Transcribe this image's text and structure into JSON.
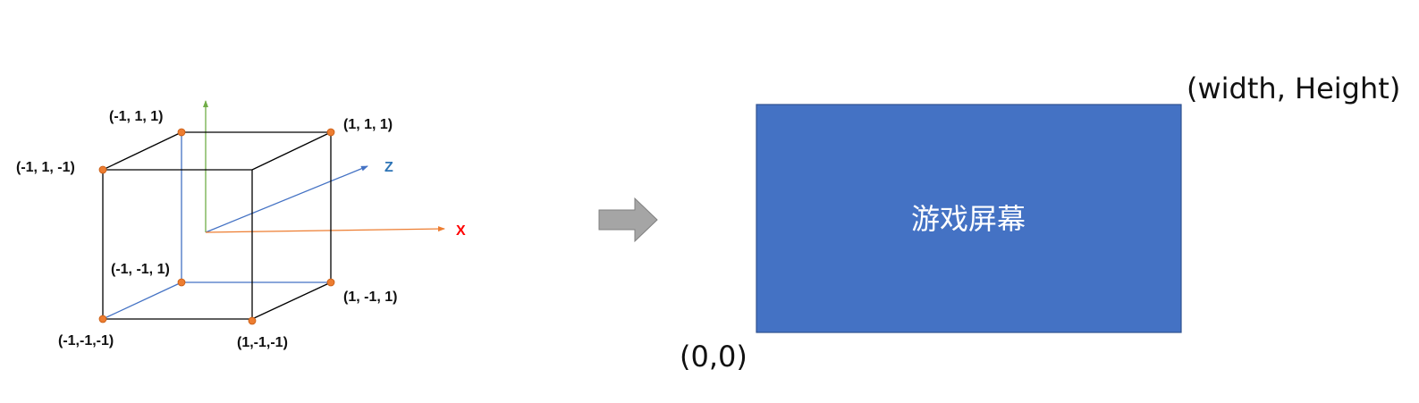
{
  "cube": {
    "vertices": {
      "top_back_left": "(-1, 1, 1)",
      "top_back_right": "(1, 1, 1)",
      "top_front_left": "(-1, 1, -1)",
      "bottom_back_left": "(-1, -1, 1)",
      "bottom_back_right": "(1, -1, 1)",
      "bottom_front_left": "(-1,-1,-1)",
      "bottom_front_right": "(1,-1,-1)"
    },
    "axes": {
      "z_label": "Z",
      "x_label": "X"
    },
    "colors": {
      "edge": "#000000",
      "hidden_edge": "#4472c4",
      "vertex": "#ed7d31",
      "y_axis": "#70ad47",
      "z_axis": "#4472c4",
      "x_axis": "#ed7d31",
      "z_label": "#2e75b6",
      "x_label": "#ff0000"
    }
  },
  "arrow": {
    "color": "#a5a5a5",
    "stroke": "#7f7f7f"
  },
  "screen": {
    "label": "游戏屏幕",
    "top_right_label": "(width, Height)",
    "bottom_left_label": "(0,0)",
    "fill": "#4472c4",
    "stroke": "#2f528f"
  }
}
